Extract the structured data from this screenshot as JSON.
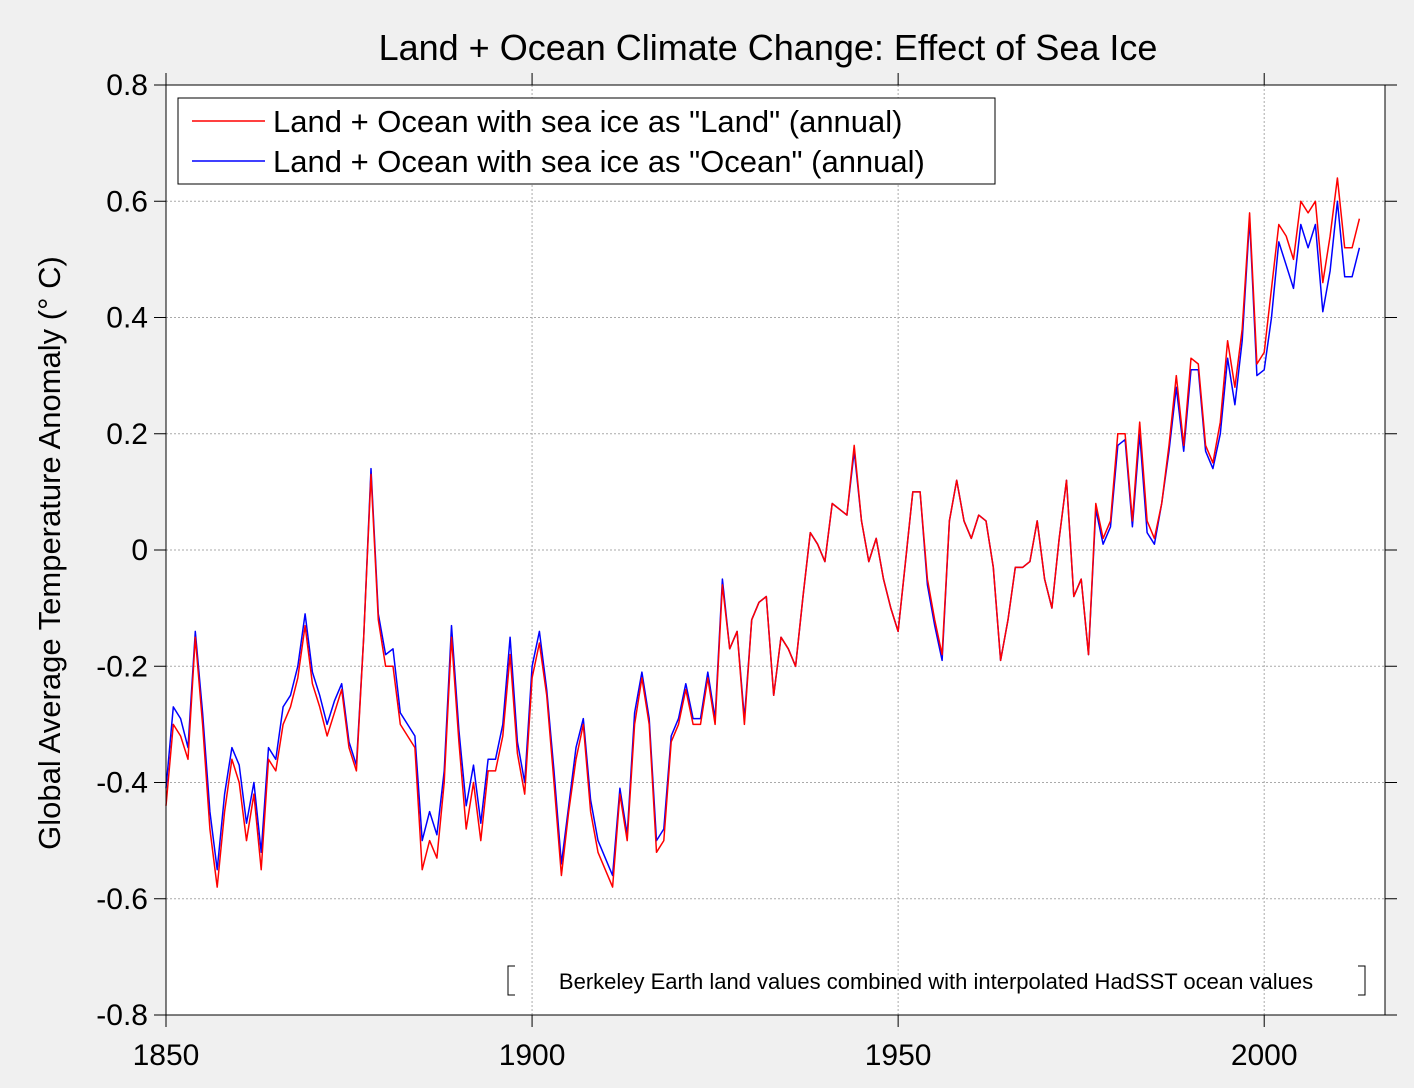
{
  "chart_data": {
    "type": "line",
    "title": "Land + Ocean Climate Change: Effect of Sea Ice",
    "xlabel": "",
    "ylabel": "Global Average Temperature Anomaly (° C)",
    "xlim": [
      1850,
      2016.5
    ],
    "ylim": [
      -0.8,
      0.8
    ],
    "xticks": [
      1850,
      1900,
      1950,
      2000
    ],
    "yticks": [
      -0.8,
      -0.6,
      -0.4,
      -0.2,
      0,
      0.2,
      0.4,
      0.6,
      0.8
    ],
    "ytick_labels": [
      "-0.8",
      "-0.6",
      "-0.4",
      "-0.2",
      "0",
      "0.2",
      "0.4",
      "0.6",
      "0.8"
    ],
    "xtick_labels": [
      "1850",
      "1900",
      "1950",
      "2000"
    ],
    "grid": true,
    "legend_position": "top-left",
    "annotation": "Berkeley Earth land values combined with interpolated HadSST ocean values",
    "x_start": 1850,
    "x_step": 1,
    "series": [
      {
        "name": "Land + Ocean with sea ice as \"Land\" (annual)",
        "color": "#ff0000",
        "values": [
          -0.44,
          -0.3,
          -0.32,
          -0.36,
          -0.15,
          -0.3,
          -0.48,
          -0.58,
          -0.45,
          -0.36,
          -0.4,
          -0.5,
          -0.42,
          -0.55,
          -0.36,
          -0.38,
          -0.3,
          -0.27,
          -0.22,
          -0.13,
          -0.23,
          -0.27,
          -0.32,
          -0.28,
          -0.24,
          -0.34,
          -0.38,
          -0.15,
          0.13,
          -0.12,
          -0.2,
          -0.2,
          -0.3,
          -0.32,
          -0.34,
          -0.55,
          -0.5,
          -0.53,
          -0.4,
          -0.15,
          -0.33,
          -0.48,
          -0.4,
          -0.5,
          -0.38,
          -0.38,
          -0.32,
          -0.18,
          -0.35,
          -0.42,
          -0.22,
          -0.16,
          -0.25,
          -0.4,
          -0.56,
          -0.45,
          -0.36,
          -0.3,
          -0.45,
          -0.52,
          -0.55,
          -0.58,
          -0.42,
          -0.5,
          -0.3,
          -0.22,
          -0.3,
          -0.52,
          -0.5,
          -0.33,
          -0.3,
          -0.24,
          -0.3,
          -0.3,
          -0.22,
          -0.3,
          -0.06,
          -0.17,
          -0.14,
          -0.3,
          -0.12,
          -0.09,
          -0.08,
          -0.25,
          -0.15,
          -0.17,
          -0.2,
          -0.08,
          0.03,
          0.01,
          -0.02,
          0.08,
          0.07,
          0.06,
          0.18,
          0.05,
          -0.02,
          0.02,
          -0.05,
          -0.1,
          -0.14,
          -0.02,
          0.1,
          0.1,
          -0.05,
          -0.12,
          -0.18,
          0.05,
          0.12,
          0.05,
          0.02,
          0.06,
          0.05,
          -0.03,
          -0.19,
          -0.12,
          -0.03,
          -0.03,
          -0.02,
          0.05,
          -0.05,
          -0.1,
          0.02,
          0.12,
          -0.08,
          -0.05,
          -0.18,
          0.08,
          0.02,
          0.05,
          0.2,
          0.2,
          0.05,
          0.22,
          0.05,
          0.02,
          0.08,
          0.18,
          0.3,
          0.18,
          0.33,
          0.32,
          0.18,
          0.15,
          0.22,
          0.36,
          0.28,
          0.38,
          0.58,
          0.32,
          0.34,
          0.45,
          0.56,
          0.54,
          0.5,
          0.6,
          0.58,
          0.6,
          0.46,
          0.54,
          0.64,
          0.52,
          0.52,
          0.57
        ]
      },
      {
        "name": "Land + Ocean with sea ice as \"Ocean\" (annual)",
        "color": "#0000ff",
        "values": [
          -0.41,
          -0.27,
          -0.29,
          -0.34,
          -0.14,
          -0.28,
          -0.45,
          -0.55,
          -0.42,
          -0.34,
          -0.37,
          -0.47,
          -0.4,
          -0.52,
          -0.34,
          -0.36,
          -0.27,
          -0.25,
          -0.2,
          -0.11,
          -0.21,
          -0.25,
          -0.3,
          -0.26,
          -0.23,
          -0.33,
          -0.37,
          -0.15,
          0.14,
          -0.11,
          -0.18,
          -0.17,
          -0.28,
          -0.3,
          -0.32,
          -0.5,
          -0.45,
          -0.49,
          -0.38,
          -0.13,
          -0.31,
          -0.44,
          -0.37,
          -0.47,
          -0.36,
          -0.36,
          -0.3,
          -0.15,
          -0.33,
          -0.4,
          -0.2,
          -0.14,
          -0.24,
          -0.38,
          -0.54,
          -0.44,
          -0.34,
          -0.29,
          -0.43,
          -0.5,
          -0.53,
          -0.56,
          -0.41,
          -0.49,
          -0.28,
          -0.21,
          -0.29,
          -0.5,
          -0.48,
          -0.32,
          -0.29,
          -0.23,
          -0.29,
          -0.29,
          -0.21,
          -0.29,
          -0.05,
          -0.17,
          -0.14,
          -0.29,
          -0.12,
          -0.09,
          -0.08,
          -0.25,
          -0.15,
          -0.17,
          -0.2,
          -0.08,
          0.03,
          0.01,
          -0.02,
          0.08,
          0.07,
          0.06,
          0.17,
          0.05,
          -0.02,
          0.02,
          -0.05,
          -0.1,
          -0.14,
          -0.02,
          0.1,
          0.1,
          -0.06,
          -0.13,
          -0.19,
          0.05,
          0.12,
          0.05,
          0.02,
          0.06,
          0.05,
          -0.03,
          -0.19,
          -0.12,
          -0.03,
          -0.03,
          -0.02,
          0.05,
          -0.05,
          -0.1,
          0.02,
          0.12,
          -0.08,
          -0.05,
          -0.18,
          0.07,
          0.01,
          0.04,
          0.18,
          0.19,
          0.04,
          0.2,
          0.03,
          0.01,
          0.08,
          0.17,
          0.28,
          0.17,
          0.31,
          0.31,
          0.17,
          0.14,
          0.2,
          0.33,
          0.25,
          0.36,
          0.57,
          0.3,
          0.31,
          0.4,
          0.53,
          0.49,
          0.45,
          0.56,
          0.52,
          0.56,
          0.41,
          0.48,
          0.6,
          0.47,
          0.47,
          0.52
        ]
      }
    ]
  }
}
